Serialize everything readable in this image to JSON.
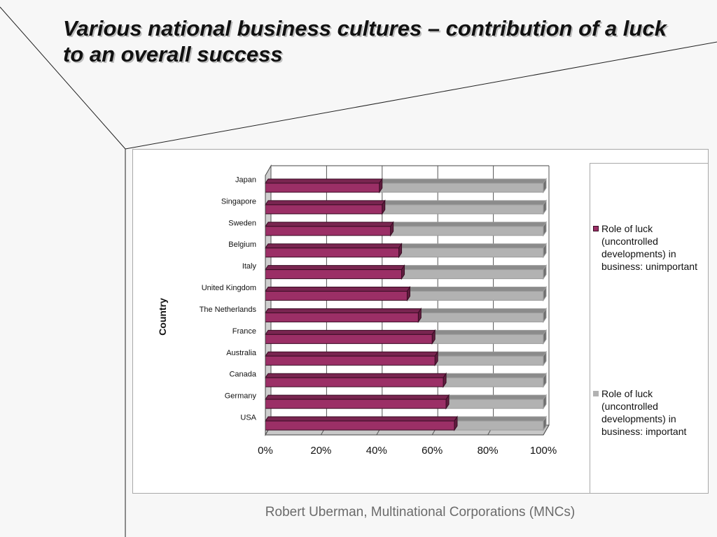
{
  "slide": {
    "title": "Various national business cultures – contribution of a luck to an overall success",
    "footer": "Robert Uberman, Multinational Corporations (MNCs)"
  },
  "colors": {
    "series_unimportant": "#9b2f66",
    "series_important": "#b2b2b2",
    "background": "#f7f7f7"
  },
  "chart_data": {
    "type": "bar",
    "orientation": "horizontal",
    "stacked": "100%",
    "style": "3d",
    "ylabel": "Country",
    "xlabel": "",
    "x_ticks": [
      "0%",
      "20%",
      "40%",
      "60%",
      "80%",
      "100%"
    ],
    "xlim": [
      0,
      100
    ],
    "grid": true,
    "legend_position": "right",
    "categories": [
      "Japan",
      "Singapore",
      "Sweden",
      "Belgium",
      "Italy",
      "United Kingdom",
      "The Netherlands",
      "France",
      "Australia",
      "Canada",
      "Germany",
      "USA"
    ],
    "series": [
      {
        "name": "Role of luck (uncontrolled developments) in business: unimportant",
        "values": [
          41,
          42,
          45,
          48,
          49,
          51,
          55,
          60,
          61,
          64,
          65,
          68
        ]
      },
      {
        "name": "Role of luck (uncontrolled developments) in business: important",
        "values": [
          59,
          58,
          55,
          52,
          51,
          49,
          45,
          40,
          39,
          36,
          35,
          32
        ]
      }
    ]
  }
}
